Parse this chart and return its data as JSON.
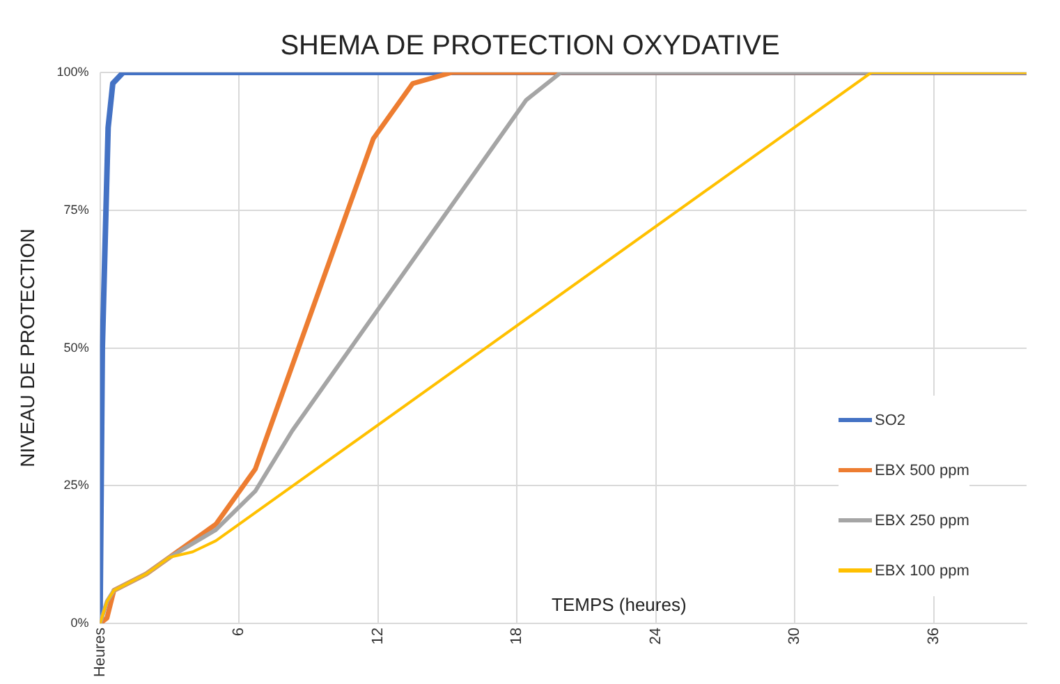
{
  "chart_data": {
    "type": "line",
    "title": "SHEMA DE PROTECTION OXYDATIVE",
    "xlabel": "TEMPS (heures)",
    "ylabel": "NIVEAU DE PROTECTION",
    "xlim": [
      0,
      40
    ],
    "xticks": [
      {
        "value": 0,
        "label": "Heures"
      },
      6,
      12,
      18,
      24,
      30,
      36
    ],
    "ylim": [
      0,
      100
    ],
    "yticks": [
      {
        "value": 0,
        "label": "0%"
      },
      {
        "value": 25,
        "label": "25%"
      },
      {
        "value": 50,
        "label": "50%"
      },
      {
        "value": 75,
        "label": "75%"
      },
      {
        "value": 100,
        "label": "100%"
      }
    ],
    "grid": true,
    "legend": "bottom right",
    "marker": "none",
    "line_style": "solid",
    "series": [
      {
        "name": "SO2",
        "color": "#4472c4",
        "x": [
          0,
          0.1,
          0.35,
          0.55,
          1,
          40
        ],
        "values": [
          0,
          50,
          90,
          98,
          100,
          100
        ]
      },
      {
        "name": "EBX 500 ppm",
        "color": "#ed7d31",
        "x": [
          0,
          0.3,
          0.6,
          2,
          3,
          5,
          6.7,
          11.8,
          13.5,
          15.2,
          40
        ],
        "values": [
          0,
          1,
          6,
          9,
          12,
          18,
          28,
          88,
          98,
          100,
          100
        ]
      },
      {
        "name": "EBX 250 ppm",
        "color": "#a5a5a5",
        "x": [
          0,
          0.3,
          0.6,
          2,
          3,
          5,
          6.7,
          8.3,
          18.4,
          19.9,
          40
        ],
        "values": [
          0,
          4,
          6,
          9,
          12,
          17,
          24,
          35,
          95,
          100,
          100
        ]
      },
      {
        "name": "EBX 100 ppm",
        "color": "#ffc000",
        "x": [
          0,
          0.3,
          0.6,
          2,
          3,
          4,
          5,
          33.3,
          40
        ],
        "values": [
          0,
          4,
          6,
          9,
          12,
          13,
          15,
          100,
          100
        ]
      }
    ]
  }
}
